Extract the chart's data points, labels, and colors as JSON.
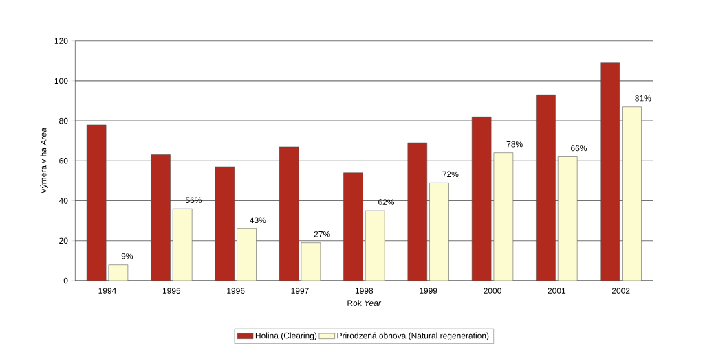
{
  "chart_data": {
    "type": "bar",
    "xlabel": "Rok *Year*",
    "ylabel": "Výmera v ha *Area*",
    "categories": [
      "1994",
      "1995",
      "1996",
      "1997",
      "1998",
      "1999",
      "2000",
      "2001",
      "2002"
    ],
    "series": [
      {
        "name": "Holina (Clearing)",
        "color": "#b22a1e",
        "values": [
          78,
          63,
          57,
          67,
          54,
          69,
          82,
          93,
          109
        ]
      },
      {
        "name": "Prirodzená obnova (Natural regeneration)",
        "color": "#fdfbd0",
        "values": [
          8,
          36,
          26,
          19,
          35,
          49,
          64,
          62,
          87
        ]
      }
    ],
    "annotations": [
      {
        "text": "9%",
        "x": "1994",
        "y": 8
      },
      {
        "text": "56%",
        "x": "1995",
        "y": 36
      },
      {
        "text": "43%",
        "x": "1996",
        "y": 26
      },
      {
        "text": "27%",
        "x": "1997",
        "y": 19
      },
      {
        "text": "62%",
        "x": "1998",
        "y": 35
      },
      {
        "text": "72%",
        "x": "1999",
        "y": 49
      },
      {
        "text": "78%",
        "x": "2000",
        "y": 64
      },
      {
        "text": "66%",
        "x": "2001",
        "y": 62
      },
      {
        "text": "81%",
        "x": "2002",
        "y": 87
      }
    ],
    "ylim": [
      0,
      120
    ],
    "yticks": [
      0,
      20,
      40,
      60,
      80,
      100,
      120
    ],
    "grid": "y",
    "legend": "bottom"
  }
}
